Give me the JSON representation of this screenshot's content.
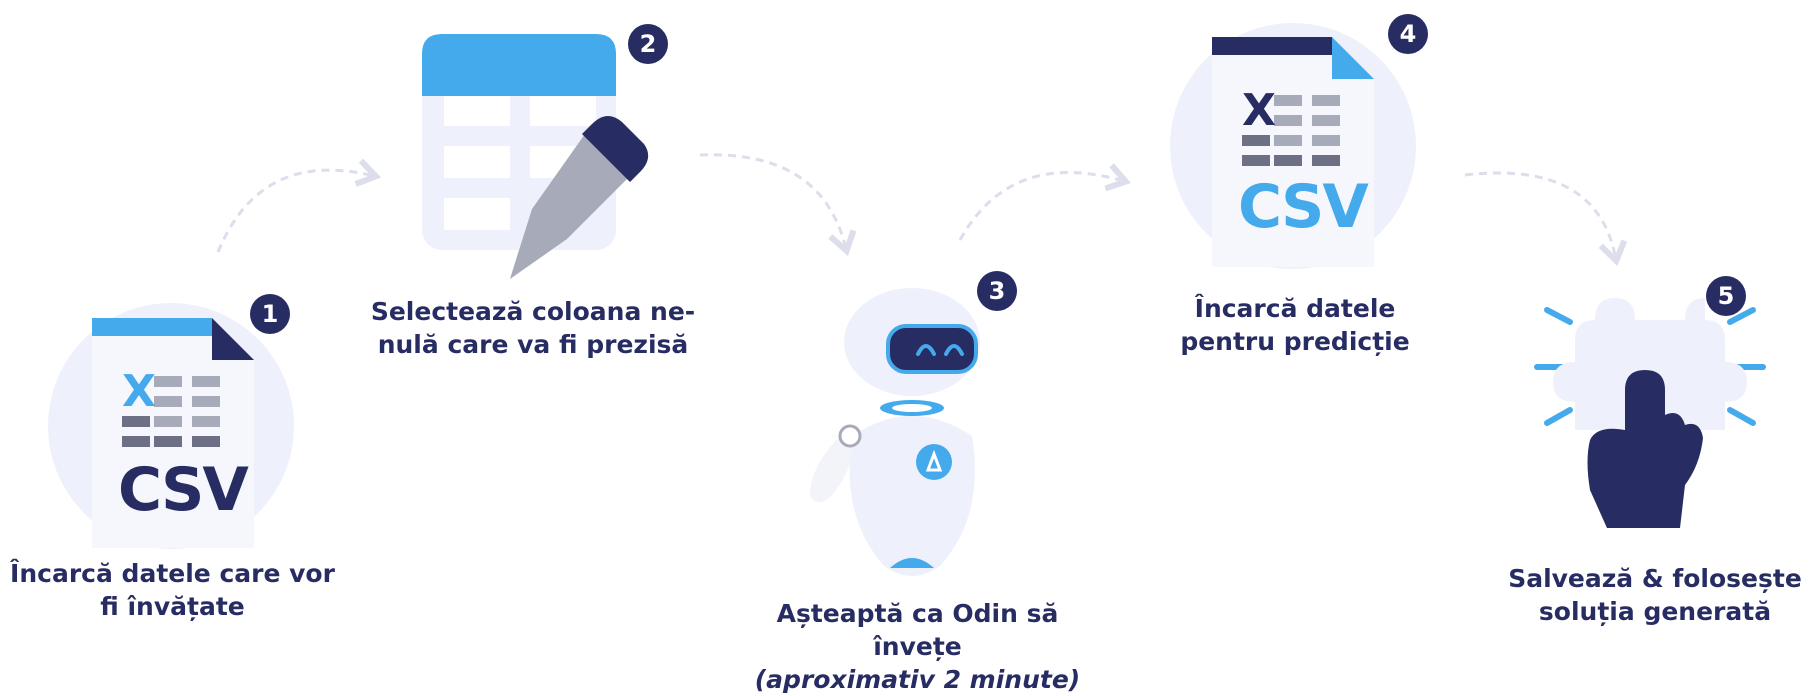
{
  "steps": [
    {
      "number": "1",
      "caption": "Încarcă datele care vor fi învățate",
      "icon": "csv-file-icon",
      "csv_label": "CSV",
      "x_mark": "X"
    },
    {
      "number": "2",
      "caption": "Selectează coloana ne-nulă care va fi prezisă",
      "icon": "table-pencil-icon"
    },
    {
      "number": "3",
      "caption": "Așteaptă ca Odin să învețe",
      "subcaption": "(aproximativ 2 minute)",
      "icon": "robot-icon"
    },
    {
      "number": "4",
      "caption": "Încarcă datele pentru predicție",
      "icon": "csv-file-icon",
      "csv_label": "CSV",
      "x_mark": "X"
    },
    {
      "number": "5",
      "caption": "Salvează & folosește soluția generată",
      "icon": "puzzle-hand-icon"
    }
  ],
  "colors": {
    "navy": "#272d63",
    "blue": "#44aaeb",
    "light_bg": "#eef1fb",
    "gray": "#a7aab9",
    "dark_gray": "#6d7085",
    "arrow": "#dcdfeb"
  }
}
